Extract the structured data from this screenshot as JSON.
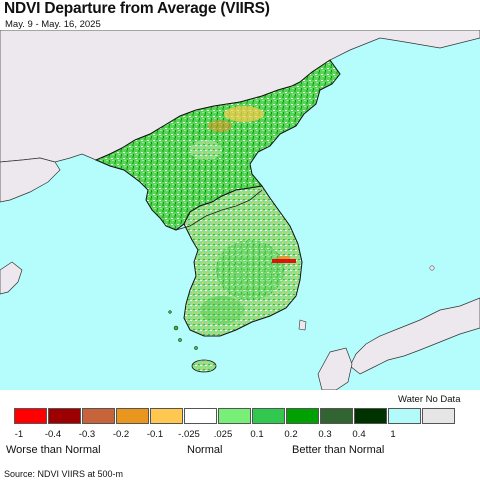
{
  "header": {
    "title": "NDVI Departure from Average (VIIRS)",
    "date_range": "May. 9 - May. 16, 2025"
  },
  "map": {
    "colors": {
      "sea": "#b5fcfc",
      "land_nodata": "#ece8ed",
      "green_light": "#78e878",
      "green_mid": "#35c735",
      "green_dark": "#0a9a0a",
      "neutral": "#ffffff",
      "yellow": "#ffcc4d",
      "orange": "#e89020",
      "red": "#e10000",
      "border": "#222222"
    }
  },
  "legend": {
    "water_no_data_label": "Water No Data",
    "swatches": [
      {
        "name": "-1 to -0.4",
        "color": "#ff0000"
      },
      {
        "name": "-0.4 to -0.3",
        "color": "#9c0000"
      },
      {
        "name": "-0.3 to -0.2",
        "color": "#c8643c"
      },
      {
        "name": "-0.2 to -0.1",
        "color": "#e8961e"
      },
      {
        "name": "-0.1 to -0.025",
        "color": "#ffc850"
      },
      {
        "name": "-0.025 to 0.025",
        "color": "#ffffff"
      },
      {
        "name": "0.025 to 0.1",
        "color": "#78f078"
      },
      {
        "name": "0.1 to 0.2",
        "color": "#32c850"
      },
      {
        "name": "0.2 to 0.3",
        "color": "#00a000"
      },
      {
        "name": "0.3 to 0.4",
        "color": "#326432"
      },
      {
        "name": "0.4 to 1",
        "color": "#003200"
      },
      {
        "name": "Water",
        "color": "#b4fafa"
      },
      {
        "name": "No Data",
        "color": "#e6e6e6"
      }
    ],
    "ticks": [
      "-1",
      "-0.4",
      "-0.3",
      "-0.2",
      "-0.1",
      "-.025",
      ".025",
      "0.1",
      "0.2",
      "0.3",
      "0.4",
      "1"
    ],
    "categories": {
      "worse": "Worse than Normal",
      "normal": "Normal",
      "better": "Better than Normal"
    }
  },
  "footer": {
    "source": "Source: NDVI VIIRS at 500-m"
  }
}
